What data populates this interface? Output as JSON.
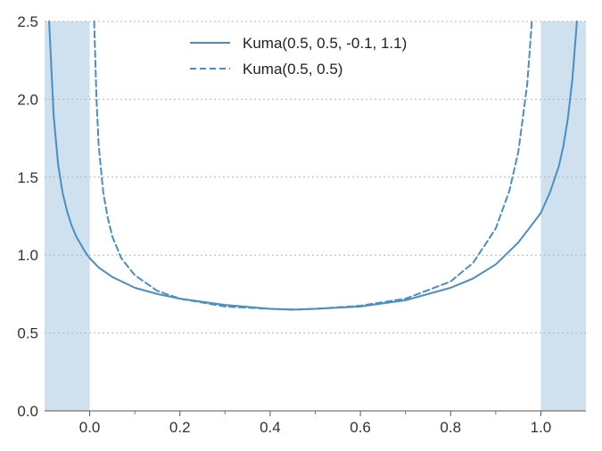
{
  "chart_data": {
    "type": "line",
    "title": "",
    "xlabel": "",
    "ylabel": "",
    "xlim": [
      -0.1,
      1.1
    ],
    "ylim": [
      0.0,
      2.5
    ],
    "xticks": [
      0.0,
      0.2,
      0.4,
      0.6,
      0.8,
      1.0
    ],
    "xtick_labels": [
      "0.0",
      "0.2",
      "0.4",
      "0.6",
      "0.8",
      "1.0"
    ],
    "xticks_minor": [
      0.1,
      0.3,
      0.5,
      0.7,
      0.9
    ],
    "yticks": [
      0.0,
      0.5,
      1.0,
      1.5,
      2.0,
      2.5
    ],
    "ytick_labels": [
      "0.0",
      "0.5",
      "1.0",
      "1.5",
      "2.0",
      "2.5"
    ],
    "grid": "horizontal dotted",
    "legend_position": "top-center",
    "shaded_regions": [
      [
        -0.1,
        0.0
      ],
      [
        1.0,
        1.1
      ]
    ],
    "series": [
      {
        "name": "Kuma(0.5, 0.5, -0.1, 1.1)",
        "style": "solid",
        "color": "#4a8fc0",
        "x": [
          -0.09,
          -0.08,
          -0.07,
          -0.06,
          -0.05,
          -0.04,
          -0.03,
          -0.02,
          -0.01,
          0.0,
          0.02,
          0.05,
          0.1,
          0.15,
          0.2,
          0.3,
          0.4,
          0.45,
          0.5,
          0.6,
          0.7,
          0.8,
          0.85,
          0.9,
          0.95,
          1.0,
          1.02,
          1.04,
          1.05,
          1.06,
          1.07,
          1.08
        ],
        "y": [
          2.5,
          1.9,
          1.58,
          1.4,
          1.28,
          1.19,
          1.12,
          1.07,
          1.02,
          0.98,
          0.92,
          0.86,
          0.79,
          0.75,
          0.72,
          0.68,
          0.655,
          0.65,
          0.655,
          0.67,
          0.71,
          0.79,
          0.85,
          0.94,
          1.08,
          1.27,
          1.4,
          1.57,
          1.7,
          1.88,
          2.13,
          2.5
        ]
      },
      {
        "name": "Kuma(0.5, 0.5)",
        "style": "dashed",
        "color": "#4a8fc0",
        "x": [
          0.01,
          0.015,
          0.02,
          0.03,
          0.04,
          0.05,
          0.07,
          0.1,
          0.15,
          0.2,
          0.3,
          0.4,
          0.45,
          0.5,
          0.6,
          0.7,
          0.8,
          0.85,
          0.9,
          0.93,
          0.95,
          0.96,
          0.97,
          0.975,
          0.98
        ],
        "y": [
          2.5,
          2.0,
          1.7,
          1.4,
          1.24,
          1.12,
          0.98,
          0.87,
          0.77,
          0.72,
          0.67,
          0.655,
          0.65,
          0.655,
          0.675,
          0.72,
          0.83,
          0.95,
          1.17,
          1.41,
          1.66,
          1.88,
          2.1,
          2.3,
          2.5
        ]
      }
    ]
  }
}
